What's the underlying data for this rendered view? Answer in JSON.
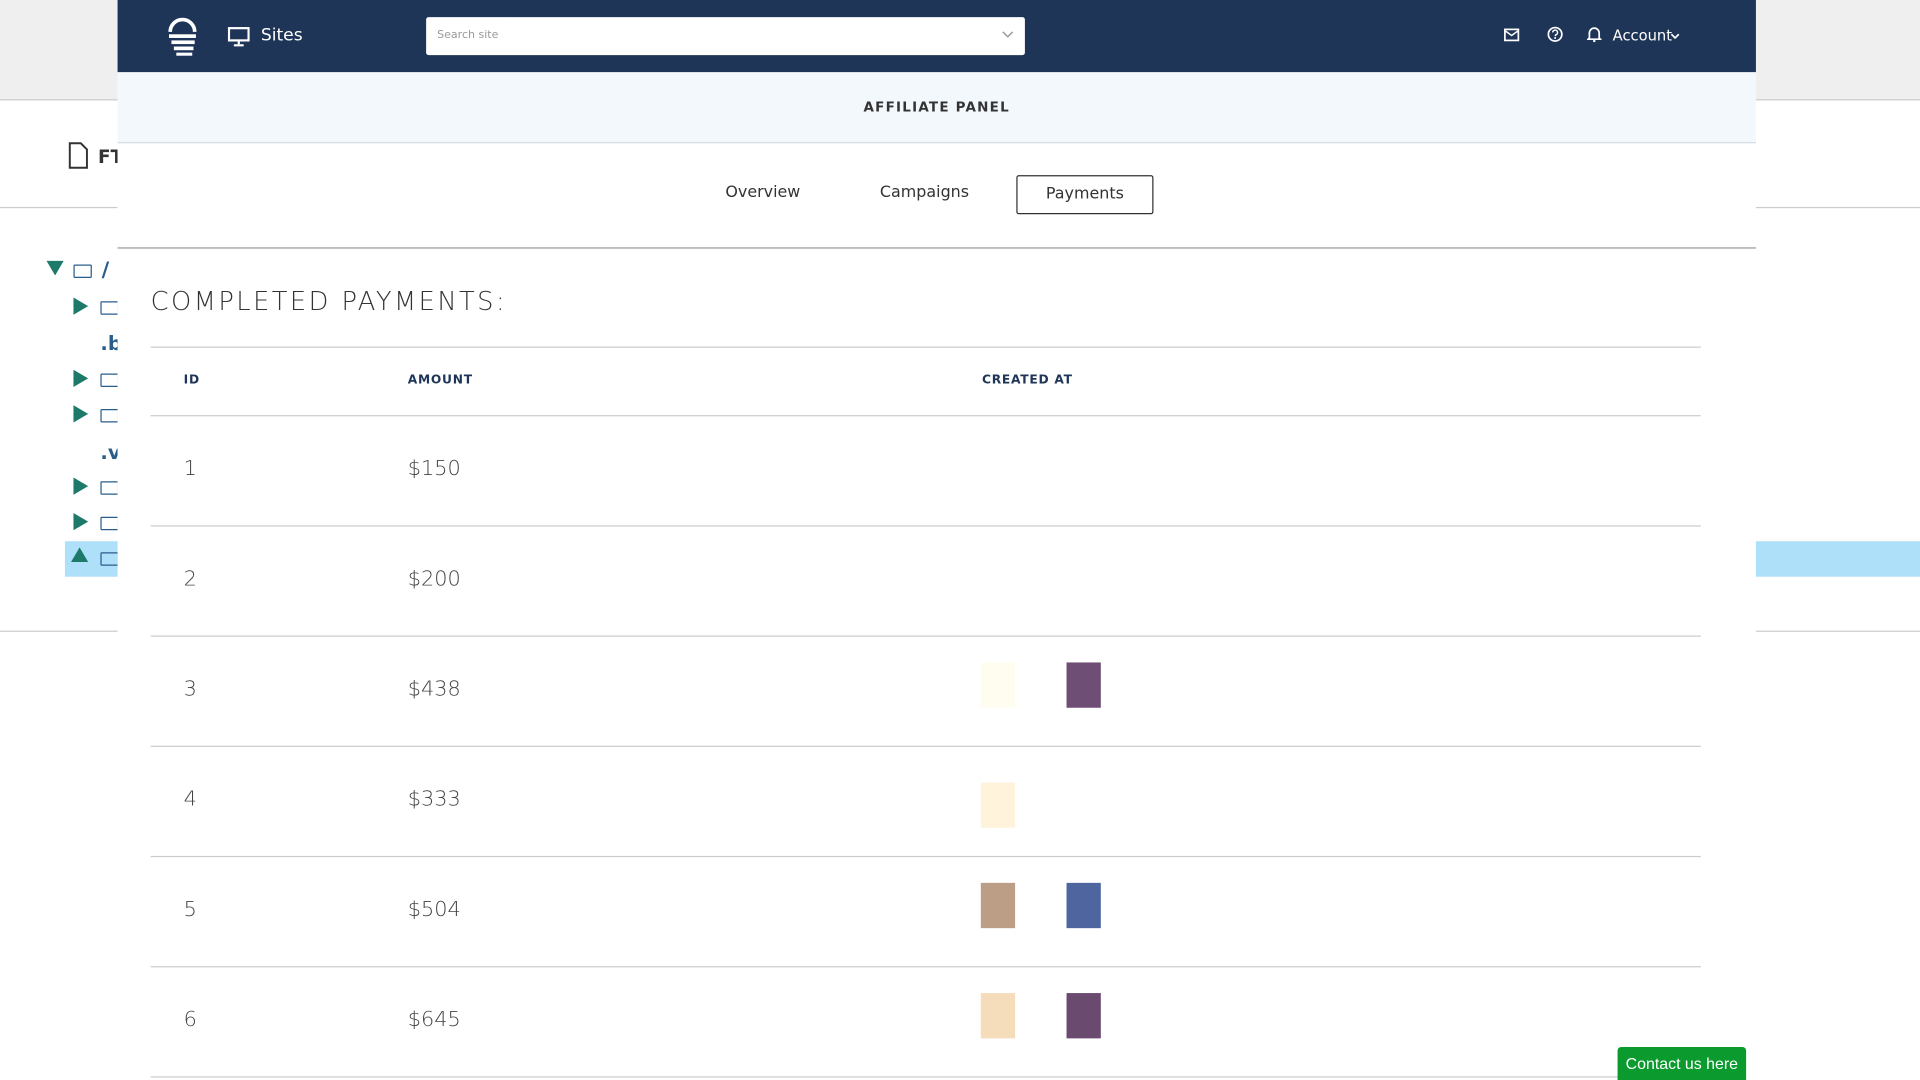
{
  "background": {
    "file_title": "FT",
    "tree": [
      "/",
      ".b",
      ".v"
    ]
  },
  "header": {
    "sites": "Sites",
    "search_placeholder": "Search site",
    "account": "Account"
  },
  "panel": {
    "title": "AFFILIATE PANEL",
    "tabs": [
      "Overview",
      "Campaigns",
      "Payments"
    ],
    "active_tab": 2
  },
  "table": {
    "title": "COMPLETED PAYMENTS:",
    "columns": [
      "ID",
      "AMOUNT",
      "CREATED AT"
    ],
    "rows": [
      {
        "id": "1",
        "amount": "$150",
        "swatches": []
      },
      {
        "id": "2",
        "amount": "$200",
        "swatches": []
      },
      {
        "id": "3",
        "amount": "$438",
        "swatches": [
          "#fffdf0",
          "#6e4e74"
        ]
      },
      {
        "id": "4",
        "amount": "$333",
        "swatches": [
          "#fff3dc"
        ]
      },
      {
        "id": "5",
        "amount": "$504",
        "swatches": [
          "#bc9e86",
          "#4e65a0"
        ]
      },
      {
        "id": "6",
        "amount": "$645",
        "swatches": [
          "#f5dcba",
          "#6b4a70"
        ]
      }
    ]
  },
  "contact": "Contact us here"
}
